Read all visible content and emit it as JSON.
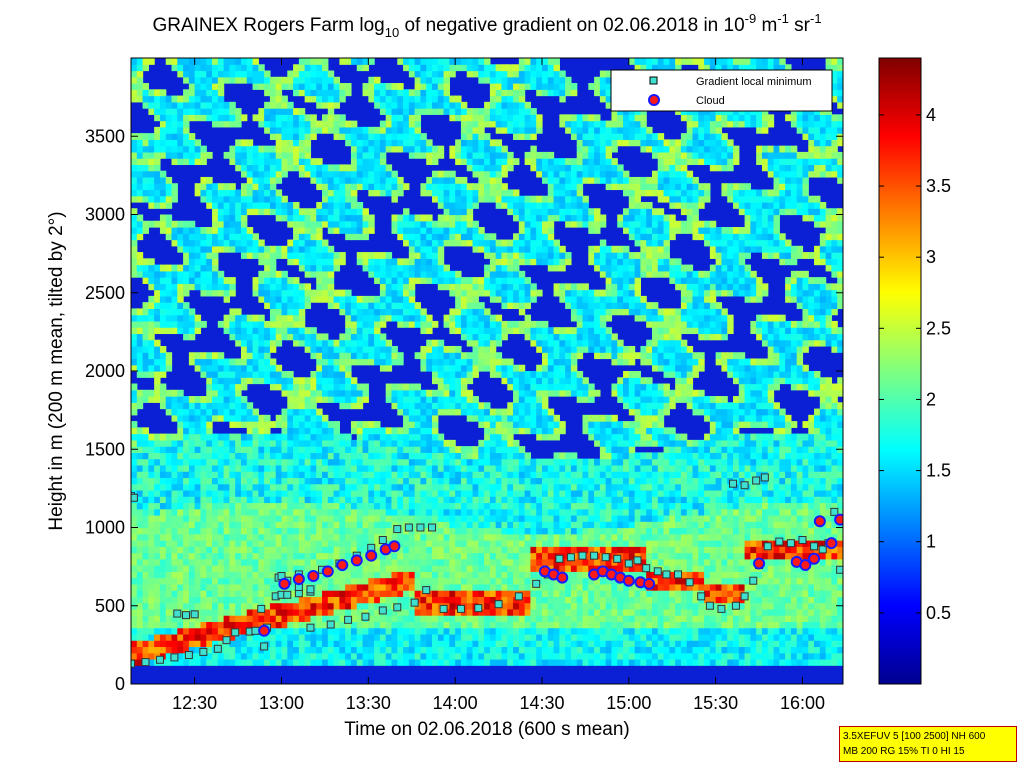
{
  "chart_data": {
    "type": "heatmap",
    "title": "GRAINEX Rogers Farm log",
    "title_sub": "10",
    "title_rest": " of negative gradient on 02.06.2018 in 10",
    "title_sup1": "-9",
    "title_mid": " m",
    "title_sup2": "-1",
    "title_end": " sr",
    "title_sup3": "-1",
    "xlabel": "Time on 02.06.2018 (600 s mean)",
    "ylabel": "Height in m (200 m mean, tilted by 2°)",
    "xlim_minutes": [
      728,
      974
    ],
    "ylim": [
      0,
      4000
    ],
    "x_ticks": [
      {
        "minutes": 750,
        "label": "12:30"
      },
      {
        "minutes": 780,
        "label": "13:00"
      },
      {
        "minutes": 810,
        "label": "13:30"
      },
      {
        "minutes": 840,
        "label": "14:00"
      },
      {
        "minutes": 870,
        "label": "14:30"
      },
      {
        "minutes": 900,
        "label": "15:00"
      },
      {
        "minutes": 930,
        "label": "15:30"
      },
      {
        "minutes": 960,
        "label": "16:00"
      }
    ],
    "y_ticks": [
      {
        "value": 0,
        "label": "0"
      },
      {
        "value": 500,
        "label": "500"
      },
      {
        "value": 1000,
        "label": "1000"
      },
      {
        "value": 1500,
        "label": "1500"
      },
      {
        "value": 2000,
        "label": "2000"
      },
      {
        "value": 2500,
        "label": "2500"
      },
      {
        "value": 3000,
        "label": "3000"
      },
      {
        "value": 3500,
        "label": "3500"
      }
    ],
    "colorbar": {
      "range": [
        0,
        4.4
      ],
      "ticks": [
        {
          "value": 0.5,
          "label": "0.5"
        },
        {
          "value": 1,
          "label": "1"
        },
        {
          "value": 1.5,
          "label": "1.5"
        },
        {
          "value": 2,
          "label": "2"
        },
        {
          "value": 2.5,
          "label": "2.5"
        },
        {
          "value": 3,
          "label": "3"
        },
        {
          "value": 3.5,
          "label": "3.5"
        },
        {
          "value": 4,
          "label": "4"
        }
      ],
      "colormap": "jet"
    },
    "legend": {
      "placement": "top-right",
      "entries": [
        {
          "label": "Gradient local minimum",
          "marker": "square",
          "color": "#40e0d0"
        },
        {
          "label": "Cloud",
          "marker": "circle",
          "color": "#ff1a1a"
        }
      ]
    },
    "series": [
      {
        "name": "Gradient local minimum",
        "points": [
          [
            728,
            1200
          ],
          [
            729,
            1190
          ],
          [
            728,
            130
          ],
          [
            733,
            140
          ],
          [
            738,
            155
          ],
          [
            743,
            170
          ],
          [
            748,
            185
          ],
          [
            753,
            205
          ],
          [
            758,
            225
          ],
          [
            761,
            280
          ],
          [
            764,
            330
          ],
          [
            769,
            335
          ],
          [
            771,
            340
          ],
          [
            773,
            480
          ],
          [
            774,
            240
          ],
          [
            775,
            360
          ],
          [
            744,
            450
          ],
          [
            747,
            440
          ],
          [
            750,
            445
          ],
          [
            778,
            560
          ],
          [
            780,
            570
          ],
          [
            782,
            570
          ],
          [
            786,
            580
          ],
          [
            790,
            590
          ],
          [
            779,
            680
          ],
          [
            782,
            660
          ],
          [
            786,
            620
          ],
          [
            790,
            605
          ],
          [
            780,
            690
          ],
          [
            786,
            700
          ],
          [
            794,
            730
          ],
          [
            800,
            770
          ],
          [
            806,
            820
          ],
          [
            811,
            870
          ],
          [
            815,
            920
          ],
          [
            820,
            990
          ],
          [
            824,
            1000
          ],
          [
            828,
            1000
          ],
          [
            832,
            1000
          ],
          [
            790,
            360
          ],
          [
            797,
            380
          ],
          [
            803,
            410
          ],
          [
            809,
            430
          ],
          [
            815,
            470
          ],
          [
            820,
            490
          ],
          [
            826,
            520
          ],
          [
            830,
            600
          ],
          [
            836,
            480
          ],
          [
            842,
            480
          ],
          [
            848,
            485
          ],
          [
            855,
            510
          ],
          [
            862,
            560
          ],
          [
            868,
            640
          ],
          [
            872,
            700
          ],
          [
            876,
            800
          ],
          [
            880,
            810
          ],
          [
            884,
            820
          ],
          [
            888,
            820
          ],
          [
            892,
            810
          ],
          [
            896,
            800
          ],
          [
            900,
            770
          ],
          [
            903,
            790
          ],
          [
            906,
            740
          ],
          [
            910,
            720
          ],
          [
            913,
            700
          ],
          [
            917,
            700
          ],
          [
            921,
            650
          ],
          [
            925,
            560
          ],
          [
            928,
            500
          ],
          [
            932,
            480
          ],
          [
            937,
            500
          ],
          [
            940,
            560
          ],
          [
            943,
            660
          ],
          [
            945,
            760
          ],
          [
            948,
            880
          ],
          [
            952,
            910
          ],
          [
            956,
            900
          ],
          [
            960,
            920
          ],
          [
            964,
            880
          ],
          [
            967,
            860
          ],
          [
            969,
            900
          ],
          [
            971,
            1100
          ],
          [
            973,
            730
          ],
          [
            936,
            1280
          ],
          [
            940,
            1270
          ],
          [
            944,
            1300
          ],
          [
            947,
            1320
          ]
        ]
      },
      {
        "name": "Cloud",
        "points": [
          [
            781,
            640
          ],
          [
            786,
            670
          ],
          [
            791,
            690
          ],
          [
            796,
            720
          ],
          [
            801,
            760
          ],
          [
            806,
            790
          ],
          [
            811,
            820
          ],
          [
            816,
            860
          ],
          [
            819,
            880
          ],
          [
            774,
            340
          ],
          [
            871,
            720
          ],
          [
            874,
            700
          ],
          [
            877,
            680
          ],
          [
            888,
            700
          ],
          [
            891,
            720
          ],
          [
            894,
            700
          ],
          [
            897,
            680
          ],
          [
            900,
            660
          ],
          [
            904,
            650
          ],
          [
            907,
            640
          ],
          [
            945,
            770
          ],
          [
            958,
            780
          ],
          [
            961,
            760
          ],
          [
            964,
            800
          ],
          [
            966,
            1040
          ],
          [
            970,
            900
          ],
          [
            973,
            1050
          ]
        ]
      }
    ]
  },
  "info_box": {
    "line1": "3.5XEFUV 5 [100 2500] NH 600",
    "line2": "MB 200 RG 15% TI 0 HI 15"
  }
}
